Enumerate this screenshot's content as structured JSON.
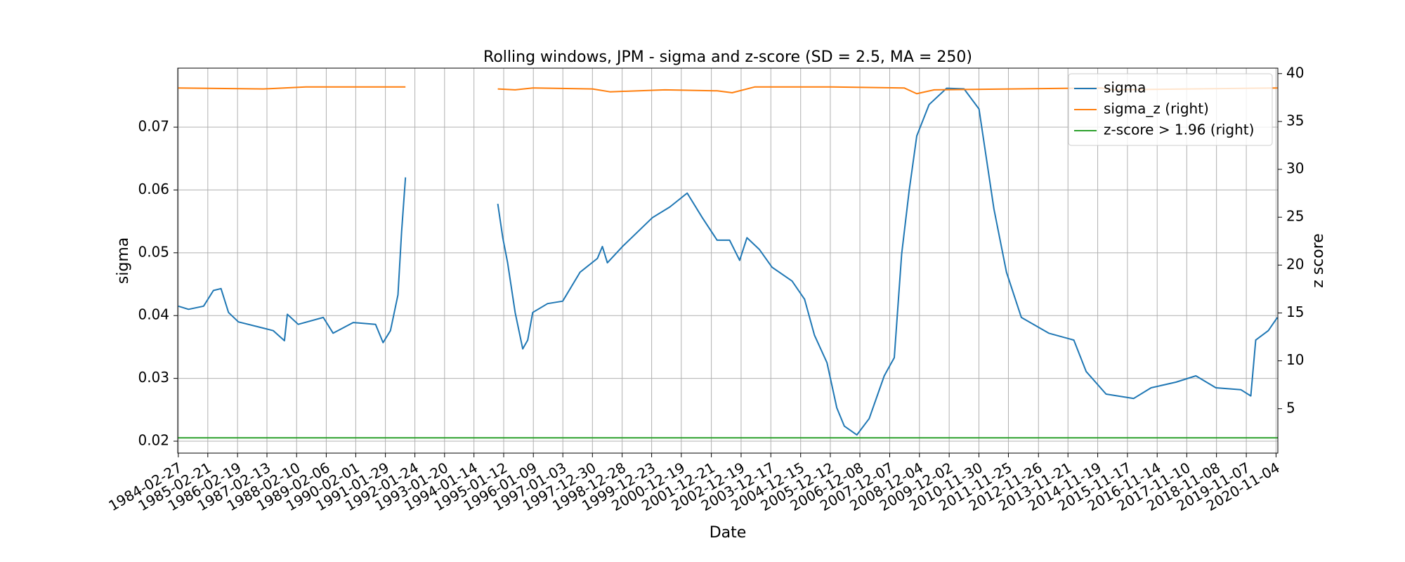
{
  "chart_data": {
    "type": "line",
    "title": "Rolling windows, JPM - sigma and z-score (SD = 2.5, MA = 250)",
    "x_label": "Date",
    "y_label": "sigma",
    "y2_label": "z score",
    "grid": true,
    "legend": "upper right",
    "xlim": [
      "1984-02-20",
      "2020-11-26"
    ],
    "xticks": [
      "1984-02-27",
      "1985-02-21",
      "1986-02-19",
      "1987-02-13",
      "1988-02-10",
      "1989-02-06",
      "1990-02-01",
      "1991-01-29",
      "1992-01-24",
      "1993-01-20",
      "1994-01-14",
      "1995-01-12",
      "1996-01-09",
      "1997-01-03",
      "1997-12-30",
      "1998-12-28",
      "1999-12-23",
      "2000-12-19",
      "2001-12-21",
      "2002-12-19",
      "2003-12-17",
      "2004-12-15",
      "2005-12-12",
      "2006-12-08",
      "2007-12-07",
      "2008-12-04",
      "2009-12-02",
      "2010-11-30",
      "2011-11-25",
      "2012-11-26",
      "2013-11-21",
      "2014-11-19",
      "2015-11-17",
      "2016-11-14",
      "2017-11-10",
      "2018-11-08",
      "2019-11-07",
      "2020-11-04"
    ],
    "ylim": [
      0.0181,
      0.0794
    ],
    "yticks": [
      0.02,
      0.03,
      0.04,
      0.05,
      0.06,
      0.07
    ],
    "y2lim": [
      0.36,
      40.57
    ],
    "y2ticks": [
      5,
      10,
      15,
      20,
      25,
      30,
      35,
      40
    ],
    "series": [
      {
        "name": "sigma",
        "color": "#1f77b4",
        "axis": "y",
        "x": [
          "1984-02-27",
          "1984-07-01",
          "1985-01-01",
          "1985-05-01",
          "1985-08-01",
          "1985-11-01",
          "1986-03-01",
          "1987-01-01",
          "1987-05-01",
          "1987-09-15",
          "1987-10-20",
          "1988-03-01",
          "1989-01-01",
          "1989-05-01",
          "1990-01-01",
          "1990-10-01",
          "1991-01-01",
          "1991-04-01",
          "1991-07-01",
          "1991-08-15",
          "1991-10-01",
          "1993-01-20",
          "1994-11-01",
          "1995-01-01",
          "1995-03-01",
          "1995-06-01",
          "1995-09-01",
          "1995-11-01",
          "1996-01-01",
          "1996-07-01",
          "1997-01-01",
          "1997-08-01",
          "1998-03-01",
          "1998-05-01",
          "1998-07-01",
          "1999-01-01",
          "2000-01-01",
          "2000-08-01",
          "2001-03-01",
          "2001-09-01",
          "2002-03-01",
          "2002-08-01",
          "2002-12-01",
          "2003-03-01",
          "2003-08-01",
          "2004-01-01",
          "2004-09-01",
          "2005-02-01",
          "2005-06-01",
          "2005-11-01",
          "2006-03-01",
          "2006-06-01",
          "2006-11-01",
          "2007-04-01",
          "2007-10-01",
          "2008-02-01",
          "2008-05-01",
          "2008-08-01",
          "2008-11-01",
          "2009-04-01",
          "2009-11-01",
          "2010-06-01",
          "2010-12-01",
          "2011-06-01",
          "2011-11-01",
          "2012-05-01",
          "2013-04-01",
          "2014-02-01",
          "2014-07-01",
          "2015-03-01",
          "2016-02-01",
          "2016-09-01",
          "2017-07-01",
          "2018-03-01",
          "2018-11-01",
          "2019-09-01",
          "2020-01-01",
          "2020-03-01",
          "2020-08-01",
          "2020-11-20"
        ],
        "values": [
          0.0415,
          0.041,
          0.0415,
          0.044,
          0.0443,
          0.0405,
          0.039,
          0.038,
          0.0376,
          0.036,
          0.0402,
          0.0386,
          0.0397,
          0.0372,
          0.0389,
          0.0386,
          0.0357,
          0.0376,
          0.0433,
          0.0534,
          0.062,
          null,
          0.0578,
          0.0524,
          0.0484,
          0.0405,
          0.0347,
          0.0361,
          0.0405,
          0.0419,
          0.0423,
          0.0469,
          0.0491,
          0.051,
          0.0484,
          0.051,
          0.0556,
          0.0573,
          0.0595,
          0.0556,
          0.052,
          0.052,
          0.0488,
          0.0524,
          0.0505,
          0.0477,
          0.0455,
          0.0426,
          0.0369,
          0.0325,
          0.0253,
          0.0224,
          0.021,
          0.0236,
          0.0304,
          0.0333,
          0.0498,
          0.0599,
          0.0686,
          0.0736,
          0.0762,
          0.0761,
          0.0729,
          0.057,
          0.0469,
          0.0397,
          0.0372,
          0.0361,
          0.0311,
          0.0275,
          0.0268,
          0.0285,
          0.0294,
          0.0304,
          0.0285,
          0.0282,
          0.0272,
          0.0361,
          0.0376,
          0.0397
        ]
      },
      {
        "name": "sigma_z (right)",
        "color": "#ff7f0e",
        "axis": "y2",
        "x": [
          "1984-02-27",
          "1987-01-01",
          "1988-06-01",
          "1991-10-01",
          "1993-01-20",
          "1994-11-01",
          "1995-06-01",
          "1996-01-01",
          "1998-01-01",
          "1998-08-01",
          "2000-06-01",
          "2002-03-01",
          "2002-09-01",
          "2003-06-01",
          "2006-01-01",
          "2008-06-01",
          "2008-11-01",
          "2009-06-01",
          "2012-01-01",
          "2015-01-01",
          "2015-06-01",
          "2020-11-20"
        ],
        "values": [
          38.5,
          38.4,
          38.6,
          38.6,
          null,
          38.4,
          38.3,
          38.5,
          38.4,
          38.1,
          38.3,
          38.2,
          38.0,
          38.6,
          38.6,
          38.5,
          37.9,
          38.3,
          38.4,
          38.5,
          38.3,
          38.5
        ]
      },
      {
        "name": "z-score > 1.96 (right)",
        "color": "#2ca02c",
        "axis": "y2",
        "x": [
          "1984-02-20",
          "2020-11-26"
        ],
        "values": [
          1.96,
          1.96
        ]
      }
    ]
  }
}
